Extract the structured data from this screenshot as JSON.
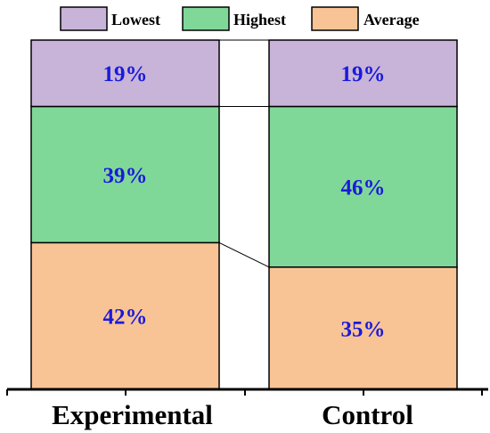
{
  "chart_data": {
    "type": "bar",
    "stacked": true,
    "percent_stacked": true,
    "categories": [
      "Experimental",
      "Control"
    ],
    "series": [
      {
        "name": "Average",
        "values": [
          42,
          35
        ],
        "labels": [
          "42%",
          "35%"
        ],
        "color": "#f8c496"
      },
      {
        "name": "Highest",
        "values": [
          39,
          46
        ],
        "labels": [
          "39%",
          "46%"
        ],
        "color": "#80d898"
      },
      {
        "name": "Lowest",
        "values": [
          19,
          19
        ],
        "labels": [
          "19%",
          "19%"
        ],
        "color": "#c8b4d8"
      }
    ],
    "legend": {
      "placement": "top",
      "order": [
        "Lowest",
        "Highest",
        "Average"
      ]
    },
    "title": "",
    "xlabel": "",
    "ylabel": "",
    "ylim": [
      0,
      100
    ],
    "grid": false,
    "connector_lines": true,
    "label_color": "#1a1adb"
  }
}
